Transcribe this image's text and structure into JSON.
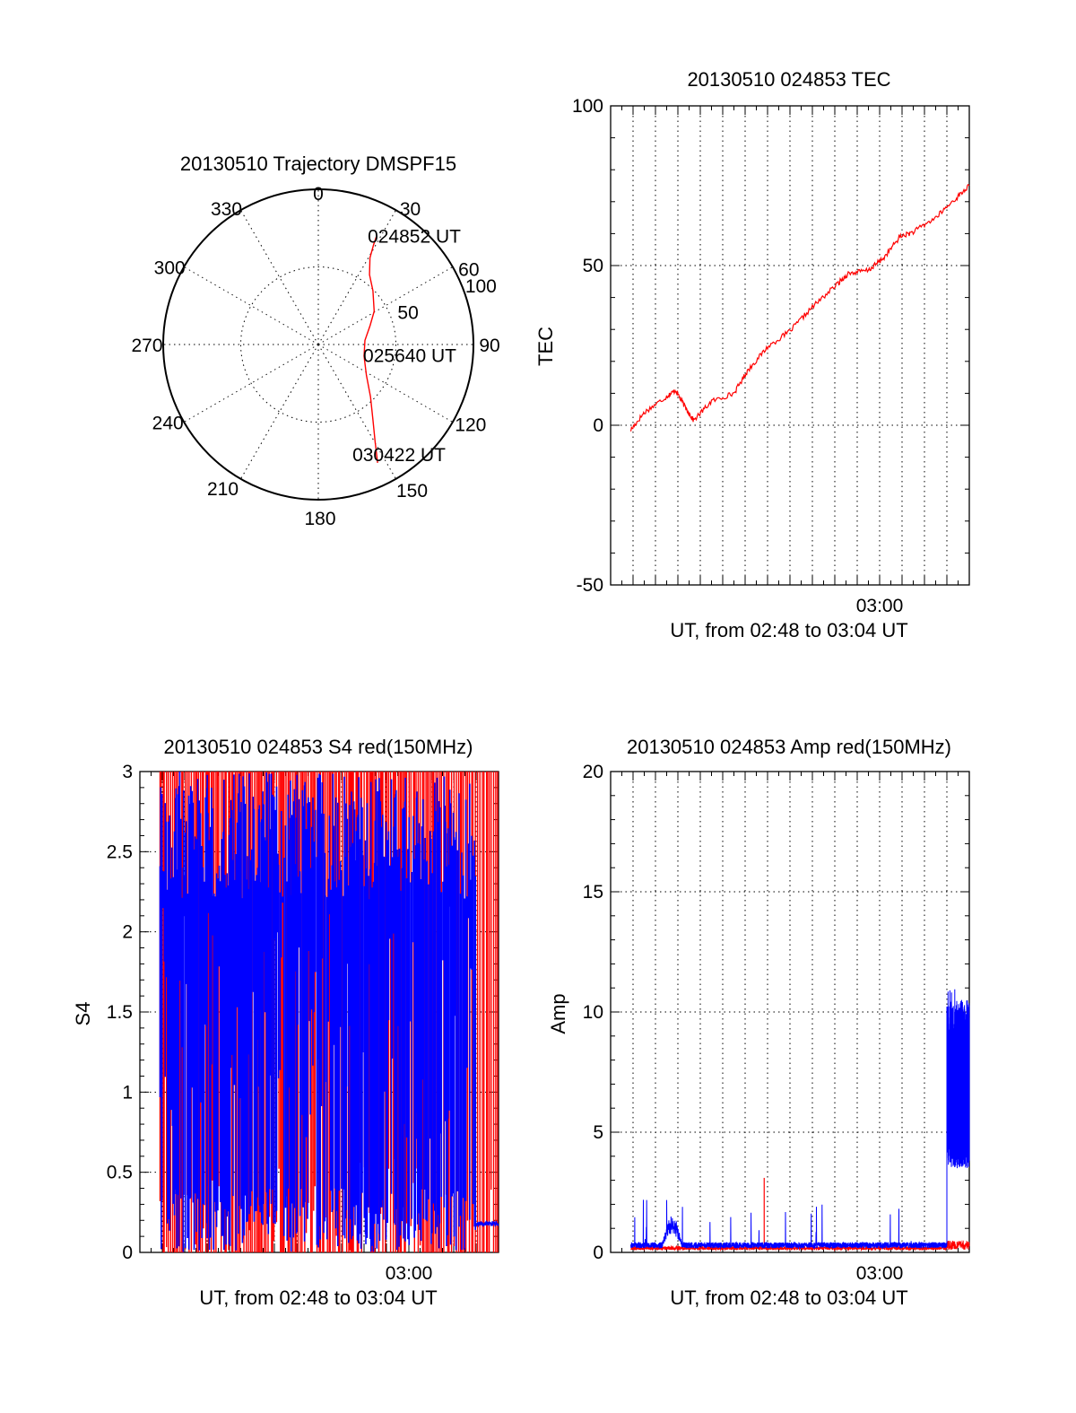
{
  "colors": {
    "red": "#ff0000",
    "blue": "#0000ff",
    "axis": "#000000"
  },
  "charts": [
    {
      "id": "trajectory",
      "type": "polar",
      "title": "20130510 Trajectory DMSPF15",
      "azimuth_labels": [
        "0",
        "30",
        "60",
        "90",
        "120",
        "150",
        "180",
        "210",
        "240",
        "270",
        "300",
        "330"
      ],
      "azimuths_deg": [
        0,
        30,
        60,
        90,
        120,
        150,
        180,
        210,
        240,
        270,
        300,
        330
      ],
      "radial_ticks": [
        50,
        100
      ],
      "radial_tick_labels": [
        "50",
        "100"
      ],
      "r_max": 100,
      "track": {
        "az_deg": [
          28.2,
          29.0,
          30.8,
          36.3,
          45.4,
          59.3,
          70.0,
          85.0,
          104.2,
          122.4,
          135.0,
          144.0,
          149.6,
          153.4
        ],
        "r": [
          79.6,
          73.6,
          65.0,
          55.8,
          49.4,
          41.9,
          35.5,
          30.2,
          30.4,
          36.7,
          47.6,
          59.9,
          72.3,
          85.3
        ]
      },
      "annotations": [
        {
          "text": "024852 UT",
          "az_deg": 28.2,
          "r": 79.6
        },
        {
          "text": "025640 UT",
          "az_deg": 85.0,
          "r": 30.2
        },
        {
          "text": "030422 UT",
          "az_deg": 153.4,
          "r": 85.3
        }
      ]
    },
    {
      "id": "tec",
      "type": "line",
      "title": "20130510 024853 TEC",
      "ylabel": "TEC",
      "xlabel": "UT, from 02:48 to 03:04 UT",
      "xlim": [
        0,
        16
      ],
      "ylim": [
        -50,
        100
      ],
      "yticks": [
        -50,
        0,
        50,
        100
      ],
      "ytick_labels": [
        "-50",
        "0",
        "50",
        "100"
      ],
      "xtick_label": "03:00",
      "xtick_value": 12,
      "grid_x_every_min": 1,
      "series": [
        {
          "name": "TEC red",
          "color": "red",
          "x": [
            0.9,
            1.5,
            2.5,
            2.9,
            3.3,
            3.7,
            4.5,
            5.5,
            6.1,
            7.0,
            8.0,
            9.0,
            10.0,
            10.6,
            11.5,
            12.2,
            12.9,
            13.5,
            14.5,
            15.4,
            16.0
          ],
          "y": [
            -1.5,
            4,
            9,
            11,
            6,
            1.5,
            7.5,
            10,
            17,
            24.5,
            29.5,
            37,
            43.5,
            47.5,
            48.5,
            52.5,
            59,
            60.5,
            65,
            71,
            75
          ]
        }
      ]
    },
    {
      "id": "s4",
      "type": "line",
      "title": "20130510 024853 S4 red(150MHz)",
      "ylabel": "S4",
      "xlabel": "UT, from 02:48 to 03:04 UT",
      "xlim": [
        0,
        16
      ],
      "ylim": [
        0,
        3
      ],
      "yticks": [
        0,
        0.5,
        1,
        1.5,
        2,
        2.5,
        3
      ],
      "ytick_labels": [
        "0",
        "0.5",
        "1",
        "1.5",
        "2",
        "2.5",
        "3"
      ],
      "xtick_label": "03:00",
      "xtick_value": 12,
      "grid_x_every_min": 1,
      "series": [
        {
          "name": "S4 red",
          "color": "red",
          "style": "dense spikes 0 to 3",
          "x_start": 0.9,
          "x_end": 16.0
        },
        {
          "name": "S4 blue",
          "color": "blue",
          "style": "dense spikes 0 to 3",
          "x_start": 0.9,
          "x_end": 15.0,
          "tail_x": [
            15.0,
            15.5,
            16.0
          ],
          "tail_y": [
            0.18,
            0.2,
            0.19
          ]
        }
      ]
    },
    {
      "id": "amp",
      "type": "line",
      "title": "20130510 024853 Amp red(150MHz)",
      "ylabel": "Amp",
      "xlabel": "UT, from 02:48 to 03:04 UT",
      "xlim": [
        0,
        16
      ],
      "ylim": [
        0,
        20
      ],
      "yticks": [
        0,
        5,
        10,
        15,
        20
      ],
      "ytick_labels": [
        "0",
        "5",
        "10",
        "15",
        "20"
      ],
      "xtick_label": "03:00",
      "xtick_value": 12,
      "grid_x_every_min": 1,
      "series": [
        {
          "name": "Amp blue",
          "color": "blue",
          "style": "noisy baseline",
          "x_start": 0.9,
          "x_end": 16.0,
          "baseline": 0.3,
          "bump_x": [
            2.3,
            3.2
          ],
          "bump_peak": 1.4,
          "burst_x": [
            15.0,
            16.0
          ],
          "burst_low": 4.5,
          "burst_high": 10.5,
          "burst_max": 11.3
        },
        {
          "name": "Amp red",
          "color": "red",
          "style": "noisy baseline",
          "x_start": 0.9,
          "x_end": 16.0,
          "baseline": 0.1,
          "spike_x": 6.85,
          "spike_y": 3.1
        }
      ]
    }
  ]
}
